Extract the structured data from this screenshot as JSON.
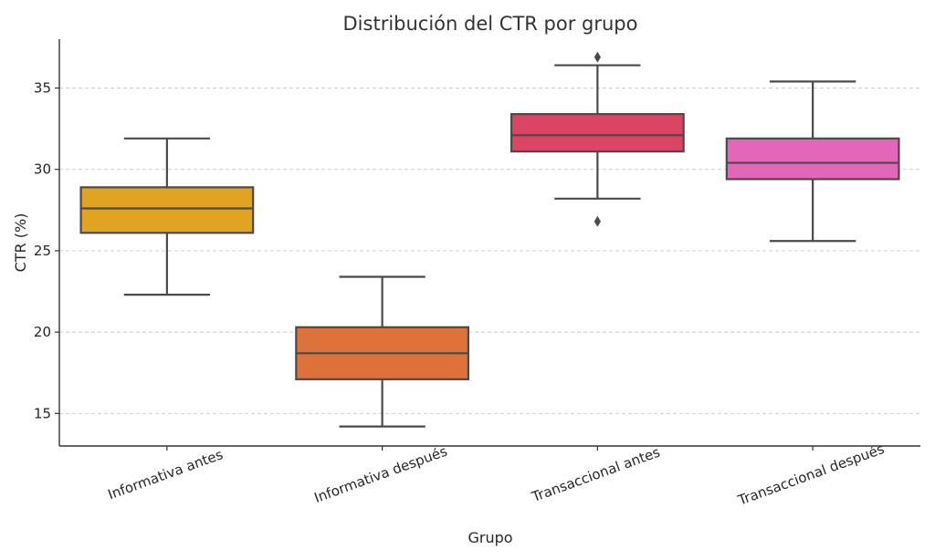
{
  "chart_data": {
    "type": "box",
    "title": "Distribución del CTR por grupo",
    "xlabel": "Grupo",
    "ylabel": "CTR (%)",
    "ylim": [
      13,
      38
    ],
    "yticks": [
      15,
      20,
      25,
      30,
      35
    ],
    "grid": "y-dashed",
    "categories": [
      "Informativa antes",
      "Informativa después",
      "Transaccional antes",
      "Transaccional después"
    ],
    "boxes": [
      {
        "label": "Informativa antes",
        "color": "#E0A322",
        "whisker_low": 22.3,
        "q1": 26.1,
        "median": 27.6,
        "q3": 28.9,
        "whisker_high": 31.9,
        "outliers": []
      },
      {
        "label": "Informativa después",
        "color": "#DD723A",
        "whisker_low": 14.2,
        "q1": 17.1,
        "median": 18.7,
        "q3": 20.3,
        "whisker_high": 23.4,
        "outliers": []
      },
      {
        "label": "Transaccional antes",
        "color": "#DB4563",
        "whisker_low": 28.2,
        "q1": 31.1,
        "median": 32.1,
        "q3": 33.4,
        "whisker_high": 36.4,
        "outliers": [
          36.9,
          26.8
        ]
      },
      {
        "label": "Transaccional después",
        "color": "#E267B8",
        "whisker_low": 25.6,
        "q1": 29.4,
        "median": 30.4,
        "q3": 31.9,
        "whisker_high": 35.4,
        "outliers": []
      }
    ]
  }
}
